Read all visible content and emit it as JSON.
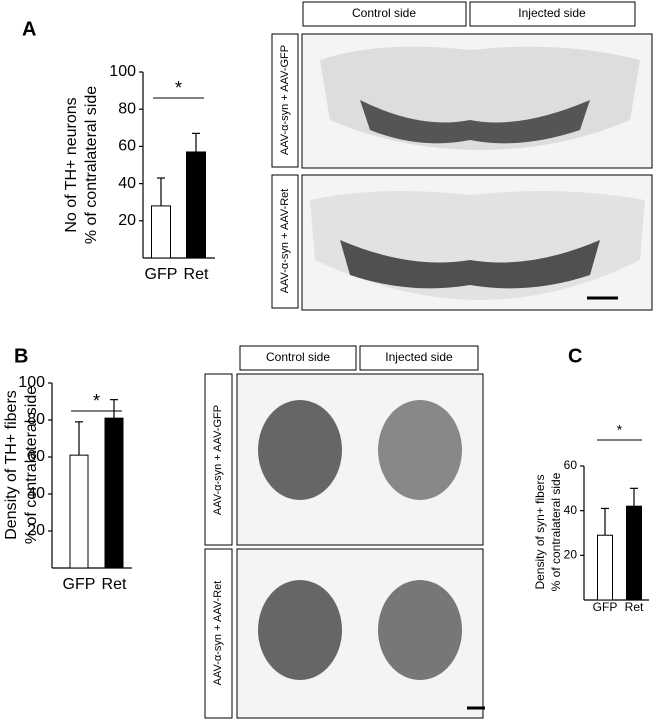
{
  "chart_data": [
    {
      "type": "bar",
      "panel": "A",
      "ylabel": [
        "No of  TH+ neurons",
        "% of contralateral side"
      ],
      "categories": [
        "GFP",
        "Ret"
      ],
      "values": [
        28,
        57
      ],
      "errors": [
        15,
        10
      ],
      "colors": [
        "#ffffff",
        "#000000"
      ],
      "ylim": [
        0,
        100
      ],
      "yticks": [
        20,
        40,
        60,
        80,
        100
      ],
      "annotation": "*"
    },
    {
      "type": "bar",
      "panel": "B",
      "ylabel": [
        "Density of TH+ fibers",
        "% of contralateral side"
      ],
      "categories": [
        "GFP",
        "Ret"
      ],
      "values": [
        61,
        81
      ],
      "errors": [
        18,
        10
      ],
      "colors": [
        "#ffffff",
        "#000000"
      ],
      "ylim": [
        0,
        100
      ],
      "yticks": [
        20,
        40,
        60,
        80,
        100
      ],
      "annotation": "*"
    },
    {
      "type": "bar",
      "panel": "C",
      "ylabel": [
        "Density of syn+ fibers",
        "% of contralateral side"
      ],
      "categories": [
        "GFP",
        "Ret"
      ],
      "values": [
        29,
        42
      ],
      "errors": [
        12,
        8
      ],
      "colors": [
        "#ffffff",
        "#000000"
      ],
      "ylim": [
        0,
        60
      ],
      "yticks": [
        20,
        40,
        60
      ],
      "annotation": "*"
    }
  ],
  "images": [
    {
      "columns": [
        "Control side",
        "Injected side"
      ],
      "rows": [
        "AAV-α-syn + AAV-GFP",
        "AAV-α-syn + AAV-Ret"
      ]
    },
    {
      "columns": [
        "Control side",
        "Injected side"
      ],
      "rows": [
        "AAV-α-syn + AAV-GFP",
        "AAV-α-syn + AAV-Ret"
      ]
    }
  ]
}
